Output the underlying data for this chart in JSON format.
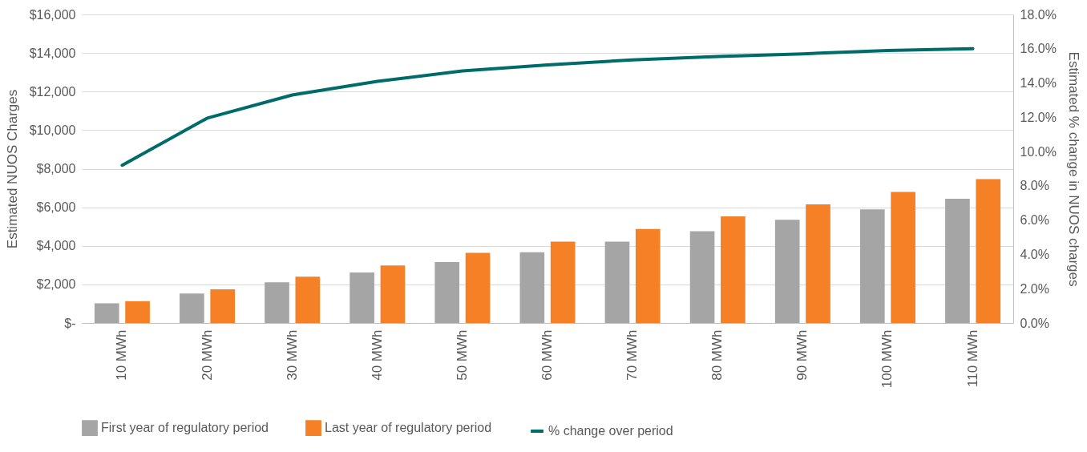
{
  "chart_data": {
    "type": "bar",
    "ylabel": "Estimated NUOS Charges",
    "y2label": "Estimated % change in NUOS charges",
    "categories": [
      "10 MWh",
      "20 MWh",
      "30 MWh",
      "40 MWh",
      "50 MWh",
      "60 MWh",
      "70 MWh",
      "80 MWh",
      "90 MWh",
      "100 MWh",
      "110 MWh"
    ],
    "series": [
      {
        "name": "First year of regulatory period",
        "color": "#a5a5a5",
        "values": [
          1020,
          1530,
          2110,
          2620,
          3160,
          3670,
          4220,
          4760,
          5350,
          5890,
          6440
        ]
      },
      {
        "name": "Last year of regulatory period",
        "color": "#f58025",
        "values": [
          1130,
          1750,
          2400,
          2980,
          3640,
          4220,
          4870,
          5530,
          6150,
          6800,
          7460
        ]
      },
      {
        "name": "% change over period",
        "color": "#006b6b",
        "type": "line",
        "axis": "y2",
        "values": [
          9.2,
          11.95,
          13.3,
          14.1,
          14.7,
          15.05,
          15.35,
          15.55,
          15.7,
          15.9,
          16.0
        ]
      }
    ],
    "ylim": [
      0,
      16000
    ],
    "yticks": [
      {
        "value": 0,
        "label": "$-"
      },
      {
        "value": 2000,
        "label": "$2,000"
      },
      {
        "value": 4000,
        "label": "$4,000"
      },
      {
        "value": 6000,
        "label": "$6,000"
      },
      {
        "value": 8000,
        "label": "$8,000"
      },
      {
        "value": 10000,
        "label": "$10,000"
      },
      {
        "value": 12000,
        "label": "$12,000"
      },
      {
        "value": 14000,
        "label": "$14,000"
      },
      {
        "value": 16000,
        "label": "$16,000"
      }
    ],
    "y2lim": [
      0,
      18
    ],
    "y2ticks": [
      {
        "value": 0,
        "label": "0.0%"
      },
      {
        "value": 2,
        "label": "2.0%"
      },
      {
        "value": 4,
        "label": "4.0%"
      },
      {
        "value": 6,
        "label": "6.0%"
      },
      {
        "value": 8,
        "label": "8.0%"
      },
      {
        "value": 10,
        "label": "10.0%"
      },
      {
        "value": 12,
        "label": "12.0%"
      },
      {
        "value": 14,
        "label": "14.0%"
      },
      {
        "value": 16,
        "label": "16.0%"
      },
      {
        "value": 18,
        "label": "18.0%"
      }
    ],
    "grid": "y",
    "legend": "bottom",
    "line_style": "solid",
    "marker": "none"
  }
}
